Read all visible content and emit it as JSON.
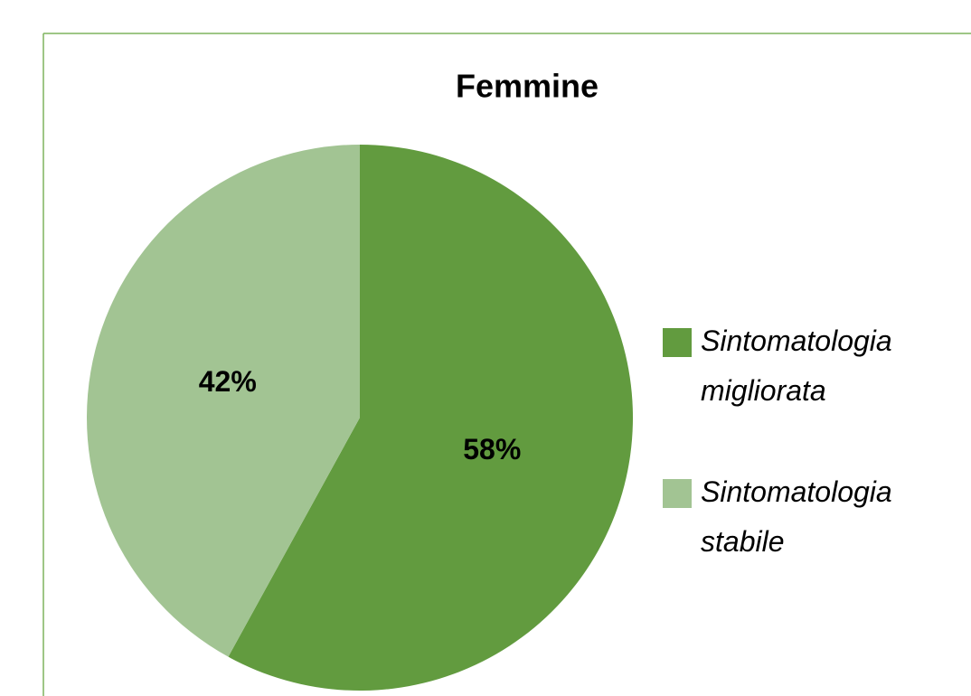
{
  "chart_data": {
    "type": "pie",
    "title": "Femmine",
    "categories": [
      "Sintomatologia migliorata",
      "Sintomatologia stabile"
    ],
    "values": [
      58,
      42
    ],
    "value_labels": [
      "58%",
      "42%"
    ],
    "colors": [
      "#629b3f",
      "#a2c493"
    ],
    "legend": "right"
  }
}
